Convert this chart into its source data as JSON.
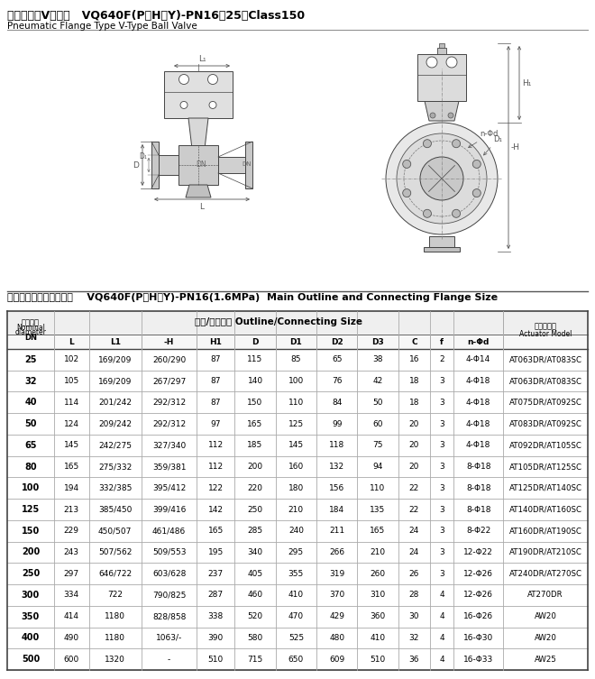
{
  "title_cn": "气动法兰式V型球阀",
  "title_model": "   VQ640F(P、H、Y)-PN16、25、Class150",
  "title_en": "Pneumatic Flange Type V-Type Ball Valve",
  "section_title": "主要外形及连接法兰尺寸    VQ640F(P、H、Y)-PN16(1.6MPa)  Main Outline and Connecting Flange Size",
  "col_header_dn_line1": "公称通径",
  "col_header_dn_line2": "Nominal",
  "col_header_dn_line3": "diameter",
  "col_header_dn_line4": "DN",
  "col_header_mid": "外形/连接尺寸 Outline/Connecting Size",
  "col_header_act_line1": "执行器型号",
  "col_header_act_line2": "Actuator Model",
  "col_headers": [
    "L",
    "L1",
    "-H",
    "H1",
    "D",
    "D1",
    "D2",
    "D3",
    "C",
    "f",
    "n-Φd"
  ],
  "rows": [
    [
      "25",
      "102",
      "169/209",
      "260/290",
      "87",
      "115",
      "85",
      "65",
      "38",
      "16",
      "2",
      "4-Φ14",
      "AT063DR/AT083SC"
    ],
    [
      "32",
      "105",
      "169/209",
      "267/297",
      "87",
      "140",
      "100",
      "76",
      "42",
      "18",
      "3",
      "4-Φ18",
      "AT063DR/AT083SC"
    ],
    [
      "40",
      "114",
      "201/242",
      "292/312",
      "87",
      "150",
      "110",
      "84",
      "50",
      "18",
      "3",
      "4-Φ18",
      "AT075DR/AT092SC"
    ],
    [
      "50",
      "124",
      "209/242",
      "292/312",
      "97",
      "165",
      "125",
      "99",
      "60",
      "20",
      "3",
      "4-Φ18",
      "AT083DR/AT092SC"
    ],
    [
      "65",
      "145",
      "242/275",
      "327/340",
      "112",
      "185",
      "145",
      "118",
      "75",
      "20",
      "3",
      "4-Φ18",
      "AT092DR/AT105SC"
    ],
    [
      "80",
      "165",
      "275/332",
      "359/381",
      "112",
      "200",
      "160",
      "132",
      "94",
      "20",
      "3",
      "8-Φ18",
      "AT105DR/AT125SC"
    ],
    [
      "100",
      "194",
      "332/385",
      "395/412",
      "122",
      "220",
      "180",
      "156",
      "110",
      "22",
      "3",
      "8-Φ18",
      "AT125DR/AT140SC"
    ],
    [
      "125",
      "213",
      "385/450",
      "399/416",
      "142",
      "250",
      "210",
      "184",
      "135",
      "22",
      "3",
      "8-Φ18",
      "AT140DR/AT160SC"
    ],
    [
      "150",
      "229",
      "450/507",
      "461/486",
      "165",
      "285",
      "240",
      "211",
      "165",
      "24",
      "3",
      "8-Φ22",
      "AT160DR/AT190SC"
    ],
    [
      "200",
      "243",
      "507/562",
      "509/553",
      "195",
      "340",
      "295",
      "266",
      "210",
      "24",
      "3",
      "12-Φ22",
      "AT190DR/AT210SC"
    ],
    [
      "250",
      "297",
      "646/722",
      "603/628",
      "237",
      "405",
      "355",
      "319",
      "260",
      "26",
      "3",
      "12-Φ26",
      "AT240DR/AT270SC"
    ],
    [
      "300",
      "334",
      "722",
      "790/825",
      "287",
      "460",
      "410",
      "370",
      "310",
      "28",
      "4",
      "12-Φ26",
      "AT270DR"
    ],
    [
      "350",
      "414",
      "1180",
      "828/858",
      "338",
      "520",
      "470",
      "429",
      "360",
      "30",
      "4",
      "16-Φ26",
      "AW20"
    ],
    [
      "400",
      "490",
      "1180",
      "1063/-",
      "390",
      "580",
      "525",
      "480",
      "410",
      "32",
      "4",
      "16-Φ30",
      "AW20"
    ],
    [
      "500",
      "600",
      "1320",
      "-",
      "510",
      "715",
      "650",
      "609",
      "510",
      "36",
      "4",
      "16-Φ33",
      "AW25"
    ]
  ],
  "bg_color": "#ffffff",
  "text_color": "#000000",
  "line_color": "#444444",
  "grid_color": "#888888"
}
